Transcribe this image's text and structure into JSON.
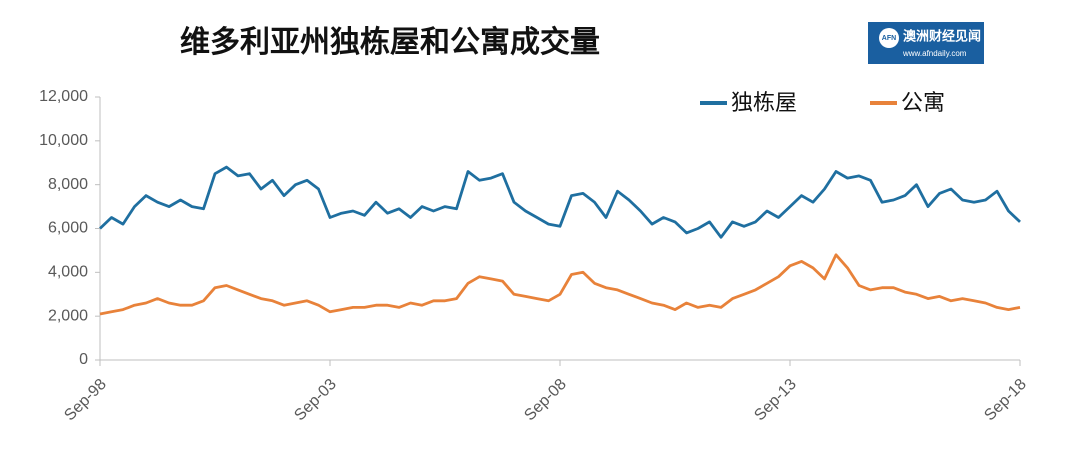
{
  "chart_data": {
    "type": "line",
    "title": "维多利亚州独栋屋和公寓成交量",
    "logo": {
      "mark": "AFN",
      "name": "澳洲财经见闻",
      "url": "www.afndaily.com"
    },
    "categories": [
      "Sep-98",
      null,
      null,
      null,
      null,
      null,
      null,
      null,
      null,
      null,
      null,
      null,
      null,
      null,
      null,
      null,
      null,
      null,
      null,
      null,
      "Sep-03",
      null,
      null,
      null,
      null,
      null,
      null,
      null,
      null,
      null,
      null,
      null,
      null,
      null,
      null,
      null,
      null,
      null,
      null,
      null,
      "Sep-08",
      null,
      null,
      null,
      null,
      null,
      null,
      null,
      null,
      null,
      null,
      null,
      null,
      null,
      null,
      null,
      null,
      null,
      null,
      null,
      "Sep-13",
      null,
      null,
      null,
      null,
      null,
      null,
      null,
      null,
      null,
      null,
      null,
      null,
      null,
      null,
      null,
      null,
      null,
      null,
      null,
      "Sep-18"
    ],
    "series": [
      {
        "name": "独栋屋",
        "color": "#1f6fa0",
        "values": [
          6000,
          6500,
          6200,
          7000,
          7500,
          7200,
          7000,
          7300,
          7000,
          6900,
          8500,
          8800,
          8400,
          8500,
          7800,
          8200,
          7500,
          8000,
          8200,
          7800,
          6500,
          6700,
          6800,
          6600,
          7200,
          6700,
          6900,
          6500,
          7000,
          6800,
          7000,
          6900,
          8600,
          8200,
          8300,
          8500,
          7200,
          6800,
          6500,
          6200,
          6100,
          7500,
          7600,
          7200,
          6500,
          7700,
          7300,
          6800,
          6200,
          6500,
          6300,
          5800,
          6000,
          6300,
          5600,
          6300,
          6100,
          6300,
          6800,
          6500,
          7000,
          7500,
          7200,
          7800,
          8600,
          8300,
          8400,
          8200,
          7200,
          7300,
          7500,
          8000,
          7000,
          7600,
          7800,
          7300,
          7200,
          7300,
          7700,
          6800,
          6300
        ]
      },
      {
        "name": "公寓",
        "color": "#e8823a",
        "values": [
          2100,
          2200,
          2300,
          2500,
          2600,
          2800,
          2600,
          2500,
          2500,
          2700,
          3300,
          3400,
          3200,
          3000,
          2800,
          2700,
          2500,
          2600,
          2700,
          2500,
          2200,
          2300,
          2400,
          2400,
          2500,
          2500,
          2400,
          2600,
          2500,
          2700,
          2700,
          2800,
          3500,
          3800,
          3700,
          3600,
          3000,
          2900,
          2800,
          2700,
          3000,
          3900,
          4000,
          3500,
          3300,
          3200,
          3000,
          2800,
          2600,
          2500,
          2300,
          2600,
          2400,
          2500,
          2400,
          2800,
          3000,
          3200,
          3500,
          3800,
          4300,
          4500,
          4200,
          3700,
          4800,
          4200,
          3400,
          3200,
          3300,
          3300,
          3100,
          3000,
          2800,
          2900,
          2700,
          2800,
          2700,
          2600,
          2400,
          2300,
          2400
        ]
      }
    ],
    "ylim": [
      0,
      12000
    ],
    "yticks": [
      0,
      {
        "value": 2000,
        "label": "2,000"
      },
      {
        "value": 4000,
        "label": "4,000"
      },
      {
        "value": 6000,
        "label": "6,000"
      },
      {
        "value": 8000,
        "label": "8,000"
      },
      {
        "value": 10000,
        "label": "10,000"
      },
      {
        "value": 12000,
        "label": "12,000"
      }
    ],
    "grid": false,
    "legend": "top-right"
  }
}
